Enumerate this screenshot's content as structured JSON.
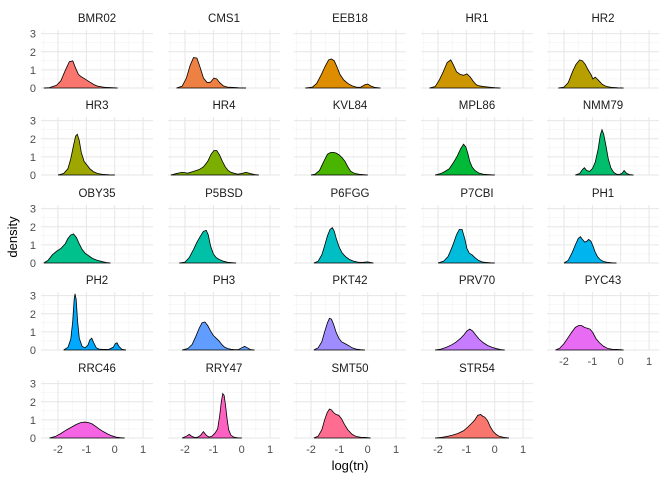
{
  "chart_data": {
    "type": "area",
    "subtype": "faceted density",
    "xlabel": "log(tn)",
    "ylabel": "density",
    "xlim": [
      -2.6,
      1.35
    ],
    "ylim": [
      0,
      3.2
    ],
    "x_ticks": [
      -2,
      -1,
      0,
      1
    ],
    "x_tick_labels": [
      "-2",
      "-1",
      "0",
      "1"
    ],
    "y_ticks": [
      0,
      1,
      2,
      3
    ],
    "y_tick_labels": [
      "0",
      "1",
      "2",
      "3"
    ],
    "grid": true,
    "facet_grid": {
      "rows": 5,
      "cols": 5
    },
    "series": [
      {
        "name": "BMR02",
        "color": "#F8766D",
        "x": [
          -2.5,
          -2.3,
          -2.05,
          -1.9,
          -1.75,
          -1.6,
          -1.48,
          -1.38,
          -1.28,
          -1.18,
          -1.05,
          -0.9,
          -0.75,
          -0.6,
          -0.45,
          -0.3,
          -0.1,
          0.1
        ],
        "y": [
          0,
          0.02,
          0.15,
          0.4,
          0.95,
          1.45,
          1.5,
          1.1,
          0.75,
          0.62,
          0.5,
          0.35,
          0.2,
          0.1,
          0.06,
          0.03,
          0.02,
          0
        ]
      },
      {
        "name": "CMS1",
        "color": "#EE8044",
        "x": [
          -2.3,
          -2.1,
          -1.95,
          -1.82,
          -1.7,
          -1.58,
          -1.47,
          -1.35,
          -1.22,
          -1.1,
          -0.98,
          -0.88,
          -0.78,
          -0.65,
          -0.5,
          -0.3,
          -0.1,
          0.15
        ],
        "y": [
          0,
          0.1,
          0.55,
          1.25,
          1.68,
          1.65,
          1.15,
          0.55,
          0.3,
          0.32,
          0.55,
          0.5,
          0.3,
          0.12,
          0.05,
          0.03,
          0.01,
          0
        ]
      },
      {
        "name": "EEB18",
        "color": "#DE8C00",
        "x": [
          -2.2,
          -1.95,
          -1.8,
          -1.65,
          -1.5,
          -1.38,
          -1.28,
          -1.18,
          -1.08,
          -0.98,
          -0.85,
          -0.7,
          -0.55,
          -0.4,
          -0.25,
          -0.1,
          0.0,
          0.1,
          0.25,
          0.45
        ],
        "y": [
          0,
          0.05,
          0.25,
          0.7,
          1.2,
          1.55,
          1.6,
          1.5,
          1.15,
          0.75,
          0.45,
          0.25,
          0.12,
          0.05,
          0.04,
          0.18,
          0.22,
          0.12,
          0.03,
          0
        ]
      },
      {
        "name": "HR1",
        "color": "#CD9600",
        "x": [
          -2.3,
          -2.1,
          -1.95,
          -1.8,
          -1.68,
          -1.55,
          -1.45,
          -1.35,
          -1.22,
          -1.1,
          -0.98,
          -0.86,
          -0.75,
          -0.65,
          -0.55,
          -0.4,
          -0.2,
          0.0,
          0.2
        ],
        "y": [
          0,
          0.08,
          0.45,
          0.95,
          1.4,
          1.55,
          1.25,
          0.9,
          0.75,
          0.7,
          0.78,
          0.6,
          0.35,
          0.18,
          0.12,
          0.08,
          0.05,
          0.02,
          0
        ]
      },
      {
        "name": "HR2",
        "color": "#B79F00",
        "x": [
          -2.2,
          -2.0,
          -1.85,
          -1.7,
          -1.58,
          -1.45,
          -1.35,
          -1.25,
          -1.15,
          -1.05,
          -0.98,
          -0.9,
          -0.8,
          -0.65,
          -0.5,
          -0.3,
          -0.1,
          0.1
        ],
        "y": [
          0,
          0.05,
          0.3,
          0.9,
          1.3,
          1.55,
          1.5,
          1.3,
          1.0,
          0.75,
          0.5,
          0.6,
          0.45,
          0.2,
          0.08,
          0.03,
          0.01,
          0
        ]
      },
      {
        "name": "HR3",
        "color": "#9DA700",
        "x": [
          -2.0,
          -1.8,
          -1.65,
          -1.55,
          -1.45,
          -1.38,
          -1.32,
          -1.25,
          -1.18,
          -1.08,
          -0.98,
          -0.88,
          -0.75,
          -0.6,
          -0.4,
          -0.2,
          0.0
        ],
        "y": [
          0,
          0.08,
          0.35,
          0.9,
          1.65,
          2.15,
          2.25,
          1.9,
          1.25,
          0.75,
          0.55,
          0.35,
          0.18,
          0.08,
          0.03,
          0.01,
          0
        ]
      },
      {
        "name": "HR4",
        "color": "#7CAE00",
        "x": [
          -2.5,
          -2.3,
          -2.1,
          -1.9,
          -1.7,
          -1.5,
          -1.35,
          -1.2,
          -1.08,
          -0.98,
          -0.88,
          -0.78,
          -0.68,
          -0.58,
          -0.48,
          -0.38,
          -0.28,
          -0.15,
          0.0,
          0.15,
          0.3,
          0.45,
          0.6
        ],
        "y": [
          0,
          0.08,
          0.15,
          0.1,
          0.2,
          0.3,
          0.45,
          0.75,
          1.15,
          1.35,
          1.35,
          1.1,
          0.75,
          0.45,
          0.25,
          0.15,
          0.1,
          0.05,
          0.08,
          0.15,
          0.08,
          0.03,
          0
        ]
      },
      {
        "name": "KVL84",
        "color": "#49B500",
        "x": [
          -2.0,
          -1.85,
          -1.7,
          -1.55,
          -1.42,
          -1.3,
          -1.2,
          -1.1,
          -1.0,
          -0.9,
          -0.8,
          -0.7,
          -0.6,
          -0.45,
          -0.3,
          -0.15,
          0.0
        ],
        "y": [
          0,
          0.05,
          0.25,
          0.75,
          1.15,
          1.25,
          1.25,
          1.2,
          1.1,
          0.95,
          0.75,
          0.45,
          0.2,
          0.08,
          0.04,
          0.02,
          0
        ]
      },
      {
        "name": "MPL86",
        "color": "#00BA38",
        "x": [
          -2.1,
          -1.9,
          -1.75,
          -1.6,
          -1.45,
          -1.32,
          -1.2,
          -1.1,
          -1.02,
          -0.95,
          -0.88,
          -0.8,
          -0.7,
          -0.55,
          -0.4,
          -0.2,
          0.0
        ],
        "y": [
          0,
          0.08,
          0.2,
          0.35,
          0.7,
          1.05,
          1.45,
          1.7,
          1.55,
          1.2,
          0.75,
          0.45,
          0.25,
          0.1,
          0.04,
          0.02,
          0
        ]
      },
      {
        "name": "NMM79",
        "color": "#00BE6C",
        "x": [
          -1.6,
          -1.45,
          -1.35,
          -1.28,
          -1.2,
          -1.1,
          -1.0,
          -0.9,
          -0.8,
          -0.72,
          -0.66,
          -0.6,
          -0.52,
          -0.44,
          -0.35,
          -0.25,
          -0.15,
          -0.05,
          0.05,
          0.12,
          0.2,
          0.3,
          0.45
        ],
        "y": [
          0,
          0.08,
          0.3,
          0.4,
          0.25,
          0.2,
          0.35,
          0.7,
          1.4,
          2.2,
          2.5,
          2.25,
          1.6,
          0.9,
          0.4,
          0.15,
          0.05,
          0.03,
          0.1,
          0.25,
          0.1,
          0.03,
          0
        ]
      },
      {
        "name": "OBY35",
        "color": "#00C08B",
        "x": [
          -2.5,
          -2.35,
          -2.2,
          -2.05,
          -1.9,
          -1.75,
          -1.65,
          -1.55,
          -1.45,
          -1.35,
          -1.25,
          -1.15,
          -1.05,
          -0.92,
          -0.78,
          -0.62,
          -0.45,
          -0.3,
          -0.15
        ],
        "y": [
          0,
          0.15,
          0.45,
          0.65,
          0.8,
          1.05,
          1.35,
          1.55,
          1.6,
          1.4,
          1.05,
          0.75,
          0.55,
          0.4,
          0.25,
          0.15,
          0.08,
          0.03,
          0
        ]
      },
      {
        "name": "P5BSD",
        "color": "#00C1A7",
        "x": [
          -2.2,
          -2.0,
          -1.85,
          -1.7,
          -1.58,
          -1.45,
          -1.35,
          -1.25,
          -1.18,
          -1.1,
          -1.0,
          -0.9,
          -0.8,
          -0.65,
          -0.5,
          -0.35,
          -0.2
        ],
        "y": [
          0,
          0.05,
          0.3,
          0.75,
          1.15,
          1.5,
          1.75,
          1.8,
          1.55,
          0.95,
          0.5,
          0.3,
          0.2,
          0.1,
          0.04,
          0.02,
          0
        ]
      },
      {
        "name": "P6FGG",
        "color": "#00BFC4",
        "x": [
          -1.9,
          -1.75,
          -1.62,
          -1.52,
          -1.42,
          -1.33,
          -1.25,
          -1.18,
          -1.1,
          -1.0,
          -0.9,
          -0.78,
          -0.65,
          -0.5,
          -0.35,
          -0.2,
          0.0,
          0.1,
          0.2
        ],
        "y": [
          0,
          0.1,
          0.45,
          0.95,
          1.5,
          1.85,
          1.95,
          1.75,
          1.3,
          0.85,
          0.55,
          0.35,
          0.2,
          0.1,
          0.05,
          0.03,
          0.06,
          0.03,
          0
        ]
      },
      {
        "name": "P7CBI",
        "color": "#00BBDC",
        "x": [
          -2.0,
          -1.8,
          -1.65,
          -1.55,
          -1.45,
          -1.35,
          -1.25,
          -1.15,
          -1.05,
          -0.98,
          -0.9,
          -0.8,
          -0.7,
          -0.58,
          -0.45,
          -0.3,
          -0.15,
          0.0
        ],
        "y": [
          0,
          0.1,
          0.35,
          0.7,
          1.1,
          1.55,
          1.85,
          1.85,
          1.3,
          0.8,
          0.55,
          0.45,
          0.3,
          0.15,
          0.06,
          0.03,
          0.01,
          0
        ]
      },
      {
        "name": "PH1",
        "color": "#00B4EF",
        "x": [
          -2.0,
          -1.85,
          -1.72,
          -1.6,
          -1.5,
          -1.42,
          -1.35,
          -1.27,
          -1.2,
          -1.13,
          -1.05,
          -0.97,
          -0.9,
          -0.82,
          -0.72,
          -0.6,
          -0.45,
          -0.3,
          -0.15
        ],
        "y": [
          0,
          0.15,
          0.55,
          1.0,
          1.35,
          1.45,
          1.3,
          1.15,
          1.2,
          1.3,
          1.2,
          0.9,
          0.6,
          0.35,
          0.18,
          0.08,
          0.03,
          0.01,
          0
        ]
      },
      {
        "name": "PH2",
        "color": "#00A9FF",
        "x": [
          -1.8,
          -1.65,
          -1.55,
          -1.48,
          -1.43,
          -1.4,
          -1.36,
          -1.31,
          -1.25,
          -1.15,
          -1.05,
          -0.95,
          -0.88,
          -0.81,
          -0.74,
          -0.65,
          -0.55,
          -0.4,
          -0.2,
          -0.05,
          0.02,
          0.08,
          0.15,
          0.25,
          0.4
        ],
        "y": [
          0,
          0.15,
          0.6,
          1.6,
          2.8,
          3.1,
          2.8,
          1.6,
          0.65,
          0.2,
          0.12,
          0.25,
          0.55,
          0.65,
          0.4,
          0.12,
          0.05,
          0.03,
          0.04,
          0.15,
          0.35,
          0.4,
          0.2,
          0.04,
          0
        ]
      },
      {
        "name": "PH3",
        "color": "#619CFF",
        "x": [
          -2.1,
          -1.9,
          -1.75,
          -1.62,
          -1.5,
          -1.4,
          -1.3,
          -1.2,
          -1.1,
          -1.0,
          -0.9,
          -0.8,
          -0.7,
          -0.6,
          -0.5,
          -0.38,
          -0.25,
          -0.12,
          0.0,
          0.1,
          0.2,
          0.3,
          0.45
        ],
        "y": [
          0,
          0.08,
          0.3,
          0.75,
          1.2,
          1.5,
          1.55,
          1.35,
          1.05,
          0.8,
          0.65,
          0.5,
          0.3,
          0.15,
          0.08,
          0.04,
          0.02,
          0.02,
          0.12,
          0.2,
          0.12,
          0.03,
          0
        ]
      },
      {
        "name": "PKT42",
        "color": "#9F8CFF",
        "x": [
          -1.9,
          -1.75,
          -1.62,
          -1.52,
          -1.42,
          -1.35,
          -1.28,
          -1.2,
          -1.12,
          -1.02,
          -0.92,
          -0.8,
          -0.68,
          -0.55,
          -0.4,
          -0.25,
          -0.1
        ],
        "y": [
          0,
          0.12,
          0.45,
          1.0,
          1.5,
          1.75,
          1.7,
          1.4,
          1.0,
          0.65,
          0.45,
          0.35,
          0.25,
          0.12,
          0.05,
          0.02,
          0
        ]
      },
      {
        "name": "PRV70",
        "color": "#C77CFF",
        "x": [
          -2.1,
          -1.9,
          -1.7,
          -1.5,
          -1.35,
          -1.2,
          -1.08,
          -0.98,
          -0.88,
          -0.78,
          -0.68,
          -0.55,
          -0.4,
          -0.25,
          -0.1,
          0.05,
          0.2,
          0.35
        ],
        "y": [
          0,
          0.05,
          0.15,
          0.3,
          0.45,
          0.65,
          0.85,
          1.05,
          1.15,
          1.05,
          0.85,
          0.6,
          0.4,
          0.25,
          0.15,
          0.08,
          0.03,
          0
        ]
      },
      {
        "name": "PYC43",
        "color": "#E76BF3",
        "x": [
          -2.3,
          -2.15,
          -2.0,
          -1.85,
          -1.72,
          -1.6,
          -1.48,
          -1.38,
          -1.28,
          -1.18,
          -1.08,
          -0.98,
          -0.88,
          -0.75,
          -0.6,
          -0.45,
          -0.3,
          -0.15,
          0.0,
          0.1
        ],
        "y": [
          0,
          0.1,
          0.35,
          0.7,
          1.0,
          1.25,
          1.35,
          1.35,
          1.25,
          1.2,
          1.15,
          0.95,
          0.65,
          0.4,
          0.2,
          0.08,
          0.04,
          0.03,
          0.02,
          0
        ]
      },
      {
        "name": "RRC46",
        "color": "#F564E3",
        "x": [
          -2.3,
          -2.1,
          -1.9,
          -1.7,
          -1.5,
          -1.35,
          -1.2,
          -1.05,
          -0.92,
          -0.8,
          -0.68,
          -0.55,
          -0.4,
          -0.25,
          -0.1,
          0.05,
          0.2,
          0.35
        ],
        "y": [
          0,
          0.08,
          0.25,
          0.45,
          0.62,
          0.75,
          0.85,
          0.88,
          0.85,
          0.78,
          0.65,
          0.5,
          0.35,
          0.22,
          0.12,
          0.05,
          0.02,
          0
        ]
      },
      {
        "name": "RRY47",
        "color": "#FF61C3",
        "x": [
          -2.1,
          -1.95,
          -1.85,
          -1.75,
          -1.65,
          -1.55,
          -1.45,
          -1.35,
          -1.25,
          -1.15,
          -1.05,
          -0.95,
          -0.85,
          -0.78,
          -0.72,
          -0.67,
          -0.62,
          -0.57,
          -0.52,
          -0.46,
          -0.38,
          -0.28,
          -0.15,
          0.0
        ],
        "y": [
          0,
          0.1,
          0.2,
          0.08,
          0.03,
          0.05,
          0.15,
          0.35,
          0.15,
          0.05,
          0.1,
          0.25,
          0.5,
          1.2,
          2.0,
          2.45,
          2.35,
          1.8,
          1.1,
          0.45,
          0.15,
          0.05,
          0.01,
          0
        ]
      },
      {
        "name": "SMT50",
        "color": "#FF6C91",
        "x": [
          -1.9,
          -1.75,
          -1.62,
          -1.52,
          -1.43,
          -1.35,
          -1.28,
          -1.2,
          -1.12,
          -1.02,
          -0.92,
          -0.82,
          -0.7,
          -0.55,
          -0.4,
          -0.25,
          -0.1,
          0.0,
          0.1
        ],
        "y": [
          0,
          0.1,
          0.45,
          1.0,
          1.4,
          1.6,
          1.55,
          1.4,
          1.3,
          1.25,
          1.05,
          0.75,
          0.45,
          0.2,
          0.08,
          0.04,
          0.03,
          0.02,
          0
        ]
      },
      {
        "name": "STR54",
        "color": "#F8766D",
        "x": [
          -2.1,
          -1.9,
          -1.7,
          -1.5,
          -1.3,
          -1.1,
          -0.95,
          -0.82,
          -0.7,
          -0.6,
          -0.5,
          -0.42,
          -0.35,
          -0.25,
          -0.15,
          -0.05,
          0.05,
          0.15,
          0.3,
          0.5
        ],
        "y": [
          0,
          0.03,
          0.08,
          0.15,
          0.25,
          0.4,
          0.6,
          0.8,
          1.0,
          1.25,
          1.3,
          1.2,
          1.15,
          0.95,
          0.6,
          0.35,
          0.2,
          0.1,
          0.04,
          0
        ]
      }
    ]
  }
}
